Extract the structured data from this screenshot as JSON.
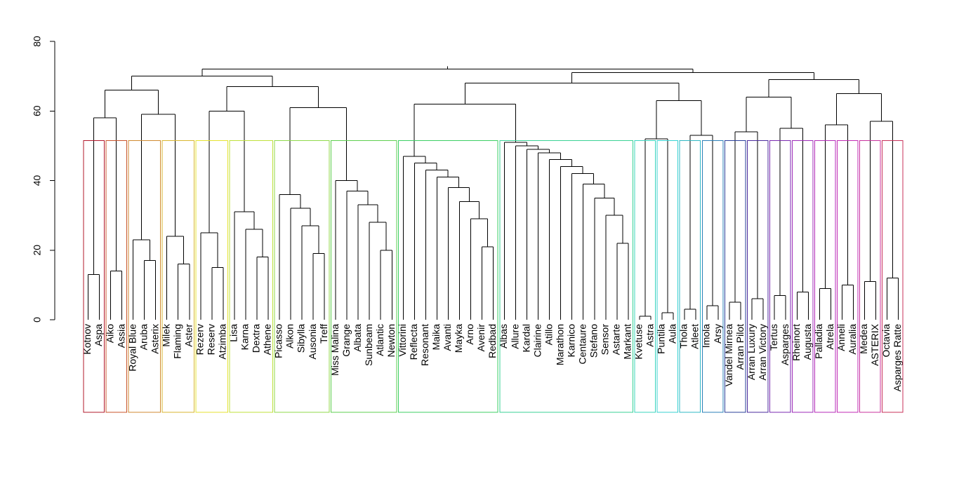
{
  "chart_data": {
    "type": "dendrogram",
    "title": "",
    "xlabel": "",
    "ylabel": "",
    "ylim": [
      0,
      80
    ],
    "yticks": [
      0,
      20,
      40,
      60,
      80
    ],
    "leaves": [
      "Kotnov",
      "Aspa",
      "Aiko",
      "Assia",
      "Royal Blue",
      "Aruba",
      "Asterix",
      "Milek",
      "Flaming",
      "Aster",
      "Rezerv",
      "Reserv",
      "Atzimba",
      "Lisa",
      "Karna",
      "Dextra",
      "Athene",
      "Picasso",
      "Alkon",
      "Sibylla",
      "Ausonia",
      "Treff",
      "Miss Malina",
      "Grange",
      "Albata",
      "Sunbeam",
      "Atlantic",
      "Newton",
      "Vittorini",
      "Reflecta",
      "Resonant",
      "Maika",
      "Avanti",
      "Mayka",
      "Arno",
      "Avenir",
      "Redbad",
      "Albas",
      "Allure",
      "Kardal",
      "Clairine",
      "Atillo",
      "Marathon",
      "Karnico",
      "Centaure",
      "Stefano",
      "Sensor",
      "Astarte",
      "Markant",
      "Kvetuse",
      "Astra",
      "Puntila",
      "Aula",
      "Thola",
      "Atleet",
      "Imola",
      "Arsy",
      "Vandel Mirnea",
      "Arran Pilot",
      "Arran Luxury",
      "Arran Victory",
      "Tertus",
      "Asparges",
      "Rheinort",
      "Augusta",
      "Palladia",
      "Atrela",
      "Anneli",
      "Auralia",
      "Medea",
      "ASTERIX",
      "Octavia",
      "Asparges Ratte"
    ],
    "merges": [
      {
        "left": "Kotnov",
        "right": "Aspa",
        "height": 13
      },
      {
        "left": "Aiko",
        "right": "Assia",
        "height": 14
      },
      {
        "left": "Kotnov+Aspa",
        "right": "Aiko+Assia",
        "height": 58
      },
      {
        "left": "Aruba",
        "right": "Asterix",
        "height": 17
      },
      {
        "left": "Royal Blue",
        "right": "Aruba+Asterix",
        "height": 23
      },
      {
        "left": "Flaming",
        "right": "Aster",
        "height": 16
      },
      {
        "left": "Milek",
        "right": "Flaming+Aster",
        "height": 24
      },
      {
        "left": "Royal Blue group",
        "right": "Milek group",
        "height": 59
      },
      {
        "left": "Kotnov group",
        "right": "Royal Blue group",
        "height": 66
      },
      {
        "left": "Reserv",
        "right": "Atzimba",
        "height": 15
      },
      {
        "left": "Rezerv",
        "right": "Reserv+Atzimba",
        "height": 25
      },
      {
        "left": "Dextra",
        "right": "Athene",
        "height": 18
      },
      {
        "left": "Karna",
        "right": "Dextra+Athene",
        "height": 26
      },
      {
        "left": "Lisa",
        "right": "Karna group",
        "height": 31
      },
      {
        "left": "Rezerv group",
        "right": "Lisa group",
        "height": 60
      },
      {
        "left": "Ausonia",
        "right": "Treff",
        "height": 19
      },
      {
        "left": "Sibylla",
        "right": "Ausonia+Treff",
        "height": 27
      },
      {
        "left": "Alkon",
        "right": "Sibylla group",
        "height": 32
      },
      {
        "left": "Picasso",
        "right": "Alkon group",
        "height": 36
      },
      {
        "left": "Atlantic",
        "right": "Newton",
        "height": 20
      },
      {
        "left": "Sunbeam",
        "right": "Atlantic+Newton",
        "height": 28
      },
      {
        "left": "Albata",
        "right": "Sunbeam group",
        "height": 33
      },
      {
        "left": "Grange",
        "right": "Albata group",
        "height": 37
      },
      {
        "left": "Miss Malina",
        "right": "Grange group",
        "height": 40
      },
      {
        "left": "Picasso group",
        "right": "Miss Malina group",
        "height": 61
      },
      {
        "left": "Rezerv group",
        "right": "Picasso group",
        "height": 67
      },
      {
        "left": "Kotnov group",
        "right": "Rezerv group",
        "height": 70
      },
      {
        "left": "Avenir",
        "right": "Redbad",
        "height": 21
      },
      {
        "left": "Arno",
        "right": "Avenir+Redbad",
        "height": 29
      },
      {
        "left": "Mayka",
        "right": "Arno group",
        "height": 34
      },
      {
        "left": "Avanti",
        "right": "Mayka group",
        "height": 38
      },
      {
        "left": "Maika",
        "right": "Avanti group",
        "height": 41
      },
      {
        "left": "Resonant",
        "right": "Maika group",
        "height": 43
      },
      {
        "left": "Reflecta",
        "right": "Resonant group",
        "height": 45
      },
      {
        "left": "Vittorini",
        "right": "Reflecta group",
        "height": 47
      },
      {
        "left": "Astarte",
        "right": "Markant",
        "height": 22
      },
      {
        "left": "Sensor",
        "right": "Astarte+Markant",
        "height": 30
      },
      {
        "left": "Stefano",
        "right": "Sensor group",
        "height": 35
      },
      {
        "left": "Centaure",
        "right": "Stefano group",
        "height": 39
      },
      {
        "left": "Karnico",
        "right": "Centaure group",
        "height": 42
      },
      {
        "left": "Marathon",
        "right": "Karnico group",
        "height": 44
      },
      {
        "left": "Atillo",
        "right": "Marathon group",
        "height": 46
      },
      {
        "left": "Clairine",
        "right": "Atillo group",
        "height": 48
      },
      {
        "left": "Kardal",
        "right": "Clairine group",
        "height": 49
      },
      {
        "left": "Allure",
        "right": "Kardal group",
        "height": 50
      },
      {
        "left": "Albas",
        "right": "Allure group",
        "height": 51
      },
      {
        "left": "Vittorini group",
        "right": "Albas group",
        "height": 62
      },
      {
        "left": "Kvetuse",
        "right": "Astra",
        "height": 1
      },
      {
        "left": "Puntila",
        "right": "Aula",
        "height": 2
      },
      {
        "left": "Kvetuse+Astra",
        "right": "Puntila+Aula",
        "height": 52
      },
      {
        "left": "Thola",
        "right": "Atleet",
        "height": 3
      },
      {
        "left": "Imola",
        "right": "Arsy",
        "height": 4
      },
      {
        "left": "Thola+Atleet",
        "right": "Imola+Arsy",
        "height": 53
      },
      {
        "left": "Kvetuse group",
        "right": "Thola group",
        "height": 63
      },
      {
        "left": "Vittorini group",
        "right": "Kvetuse group",
        "height": 68
      },
      {
        "left": "Vandel Mirnea",
        "right": "Arran Pilot",
        "height": 5
      },
      {
        "left": "Arran Luxury",
        "right": "Arran Victory",
        "height": 6
      },
      {
        "left": "Vandel Mirnea+Arran Pilot",
        "right": "Arran Luxury+Arran Victory",
        "height": 54
      },
      {
        "left": "Tertus",
        "right": "Asparges",
        "height": 7
      },
      {
        "left": "Rheinort",
        "right": "Augusta",
        "height": 8
      },
      {
        "left": "Tertus+Asparges",
        "right": "Rheinort+Augusta",
        "height": 55
      },
      {
        "left": "Vandel Mirnea group",
        "right": "Tertus group",
        "height": 64
      },
      {
        "left": "Palladia",
        "right": "Atrela",
        "height": 9
      },
      {
        "left": "Anneli",
        "right": "Auralia",
        "height": 10
      },
      {
        "left": "Palladia+Atrela",
        "right": "Anneli+Auralia",
        "height": 56
      },
      {
        "left": "Medea",
        "right": "ASTERIX",
        "height": 11
      },
      {
        "left": "Octavia",
        "right": "Asparges Ratte",
        "height": 12
      },
      {
        "left": "Medea+ASTERIX",
        "right": "Octavia+Asparges Ratte",
        "height": 57
      },
      {
        "left": "Palladia group",
        "right": "Medea group",
        "height": 65
      },
      {
        "left": "Vandel Mirnea group",
        "right": "Palladia group",
        "height": 69
      },
      {
        "left": "Vittorini group",
        "right": "Vandel Mirnea group",
        "height": 71
      },
      {
        "left": "Kotnov group",
        "right": "Vittorini group",
        "height": 72
      }
    ],
    "clusters": [
      {
        "leaves": [
          "Kotnov",
          "Aspa"
        ],
        "color": "#b2182b"
      },
      {
        "leaves": [
          "Aiko",
          "Assia"
        ],
        "color": "#c8532a"
      },
      {
        "leaves": [
          "Royal Blue",
          "Aruba",
          "Asterix"
        ],
        "color": "#d08a30"
      },
      {
        "leaves": [
          "Milek",
          "Flaming",
          "Aster"
        ],
        "color": "#d9b62f"
      },
      {
        "leaves": [
          "Rezerv",
          "Reserv",
          "Atzimba"
        ],
        "color": "#e5e22f"
      },
      {
        "leaves": [
          "Lisa",
          "Karna",
          "Dextra",
          "Athene"
        ],
        "color": "#bfe03a"
      },
      {
        "leaves": [
          "Picasso",
          "Alkon",
          "Sibylla",
          "Ausonia",
          "Treff"
        ],
        "color": "#8fd94a"
      },
      {
        "leaves": [
          "Miss Malina",
          "Grange",
          "Albata",
          "Sunbeam",
          "Atlantic",
          "Newton"
        ],
        "color": "#5dcf4f"
      },
      {
        "leaves": [
          "Vittorini",
          "Reflecta",
          "Resonant",
          "Maika",
          "Avanti",
          "Mayka",
          "Arno",
          "Avenir",
          "Redbad"
        ],
        "color": "#3ccf63"
      },
      {
        "leaves": [
          "Albas",
          "Allure",
          "Kardal",
          "Clairine",
          "Atillo",
          "Marathon",
          "Karnico",
          "Centaure",
          "Stefano",
          "Sensor",
          "Astarte",
          "Markant"
        ],
        "color": "#3ad295"
      },
      {
        "leaves": [
          "Kvetuse",
          "Astra"
        ],
        "color": "#38d4bd"
      },
      {
        "leaves": [
          "Puntila",
          "Aula"
        ],
        "color": "#37d2d2"
      },
      {
        "leaves": [
          "Thola",
          "Atleet"
        ],
        "color": "#2fb8c4"
      },
      {
        "leaves": [
          "Imola",
          "Arsy"
        ],
        "color": "#2a7fb8"
      },
      {
        "leaves": [
          "Vandel Mirnea",
          "Arran Pilot"
        ],
        "color": "#2a3f9a"
      },
      {
        "leaves": [
          "Arran Luxury",
          "Arran Victory"
        ],
        "color": "#4a2a9c"
      },
      {
        "leaves": [
          "Tertus",
          "Asparges"
        ],
        "color": "#7a2ab0"
      },
      {
        "leaves": [
          "Rheinort",
          "Augusta"
        ],
        "color": "#9e2ab8"
      },
      {
        "leaves": [
          "Palladia",
          "Atrela"
        ],
        "color": "#b52ab8"
      },
      {
        "leaves": [
          "Anneli",
          "Auralia"
        ],
        "color": "#c22ab4"
      },
      {
        "leaves": [
          "Medea",
          "ASTERIX"
        ],
        "color": "#c8329e"
      },
      {
        "leaves": [
          "Octavia",
          "Asparges Ratte"
        ],
        "color": "#c8325a"
      }
    ],
    "cluster_box_height": 51.5
  }
}
